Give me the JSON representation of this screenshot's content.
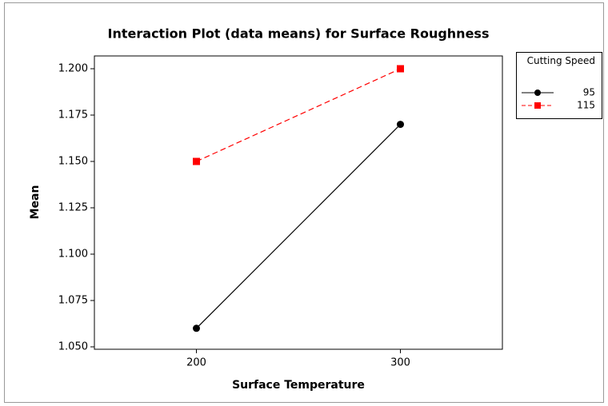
{
  "chart_data": {
    "type": "line",
    "title": "Interaction Plot (data means) for Surface Roughness",
    "x_label": "Surface Temperature",
    "y_label": "Mean",
    "legend_title": "Cutting Speed",
    "x": [
      200,
      300
    ],
    "series": [
      {
        "name": "95",
        "color": "#000000",
        "marker": "circle",
        "dashed": false,
        "values": [
          1.06,
          1.17
        ]
      },
      {
        "name": "115",
        "color": "#ff0000",
        "marker": "square",
        "dashed": true,
        "values": [
          1.15,
          1.2
        ]
      }
    ],
    "xlim": [
      150,
      350
    ],
    "xticks": [
      200,
      300
    ],
    "ylim": [
      1.0487,
      1.2069
    ],
    "yticks": [
      {
        "value": 1.05,
        "label": "1.050"
      },
      {
        "value": 1.075,
        "label": "1.075"
      },
      {
        "value": 1.1,
        "label": "1.100"
      },
      {
        "value": 1.125,
        "label": "1.125"
      },
      {
        "value": 1.15,
        "label": "1.150"
      },
      {
        "value": 1.175,
        "label": "1.175"
      },
      {
        "value": 1.2,
        "label": "1.200"
      }
    ],
    "legend_position": "right"
  }
}
